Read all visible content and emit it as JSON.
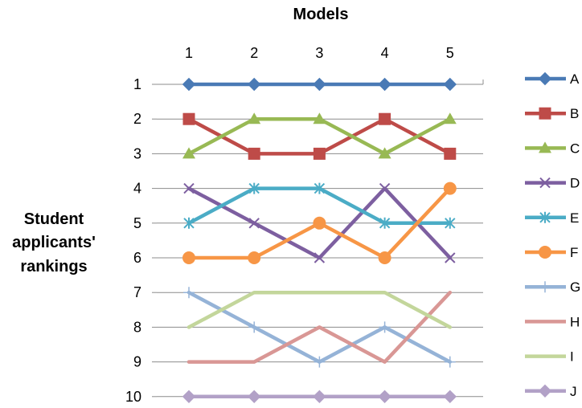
{
  "chart_data": {
    "type": "line",
    "xlabel": "Models",
    "ylabel": "Student applicants' rankings",
    "ylabel_lines": [
      "Student",
      "applicants'",
      "rankings"
    ],
    "x": [
      1,
      2,
      3,
      4,
      5
    ],
    "ylim": [
      1,
      10
    ],
    "y_inverted": true,
    "x_axis_position": "top",
    "yticks": [
      1,
      2,
      3,
      4,
      5,
      6,
      7,
      8,
      9,
      10
    ],
    "grid": "horizontal",
    "legend_position": "right",
    "series": [
      {
        "name": "A",
        "values": [
          1,
          1,
          1,
          1,
          1
        ],
        "color": "#4a7ab5",
        "marker": "diamond"
      },
      {
        "name": "B",
        "values": [
          2,
          3,
          3,
          2,
          3
        ],
        "color": "#be4b48",
        "marker": "square"
      },
      {
        "name": "C",
        "values": [
          3,
          2,
          2,
          3,
          2
        ],
        "color": "#98b954",
        "marker": "triangle"
      },
      {
        "name": "D",
        "values": [
          4,
          5,
          6,
          4,
          6
        ],
        "color": "#7d5fa0",
        "marker": "x"
      },
      {
        "name": "E",
        "values": [
          5,
          4,
          4,
          5,
          5
        ],
        "color": "#4bacc6",
        "marker": "star"
      },
      {
        "name": "F",
        "values": [
          6,
          6,
          5,
          6,
          4
        ],
        "color": "#f79646",
        "marker": "circle"
      },
      {
        "name": "G",
        "values": [
          7,
          8,
          9,
          8,
          9
        ],
        "color": "#95b3d7",
        "marker": "plus"
      },
      {
        "name": "H",
        "values": [
          9,
          9,
          8,
          9,
          7
        ],
        "color": "#d99795",
        "marker": "none"
      },
      {
        "name": "I",
        "values": [
          8,
          7,
          7,
          7,
          8
        ],
        "color": "#c3d69b",
        "marker": "none"
      },
      {
        "name": "J",
        "values": [
          10,
          10,
          10,
          10,
          10
        ],
        "color": "#b2a1c7",
        "marker": "diamond"
      }
    ]
  }
}
